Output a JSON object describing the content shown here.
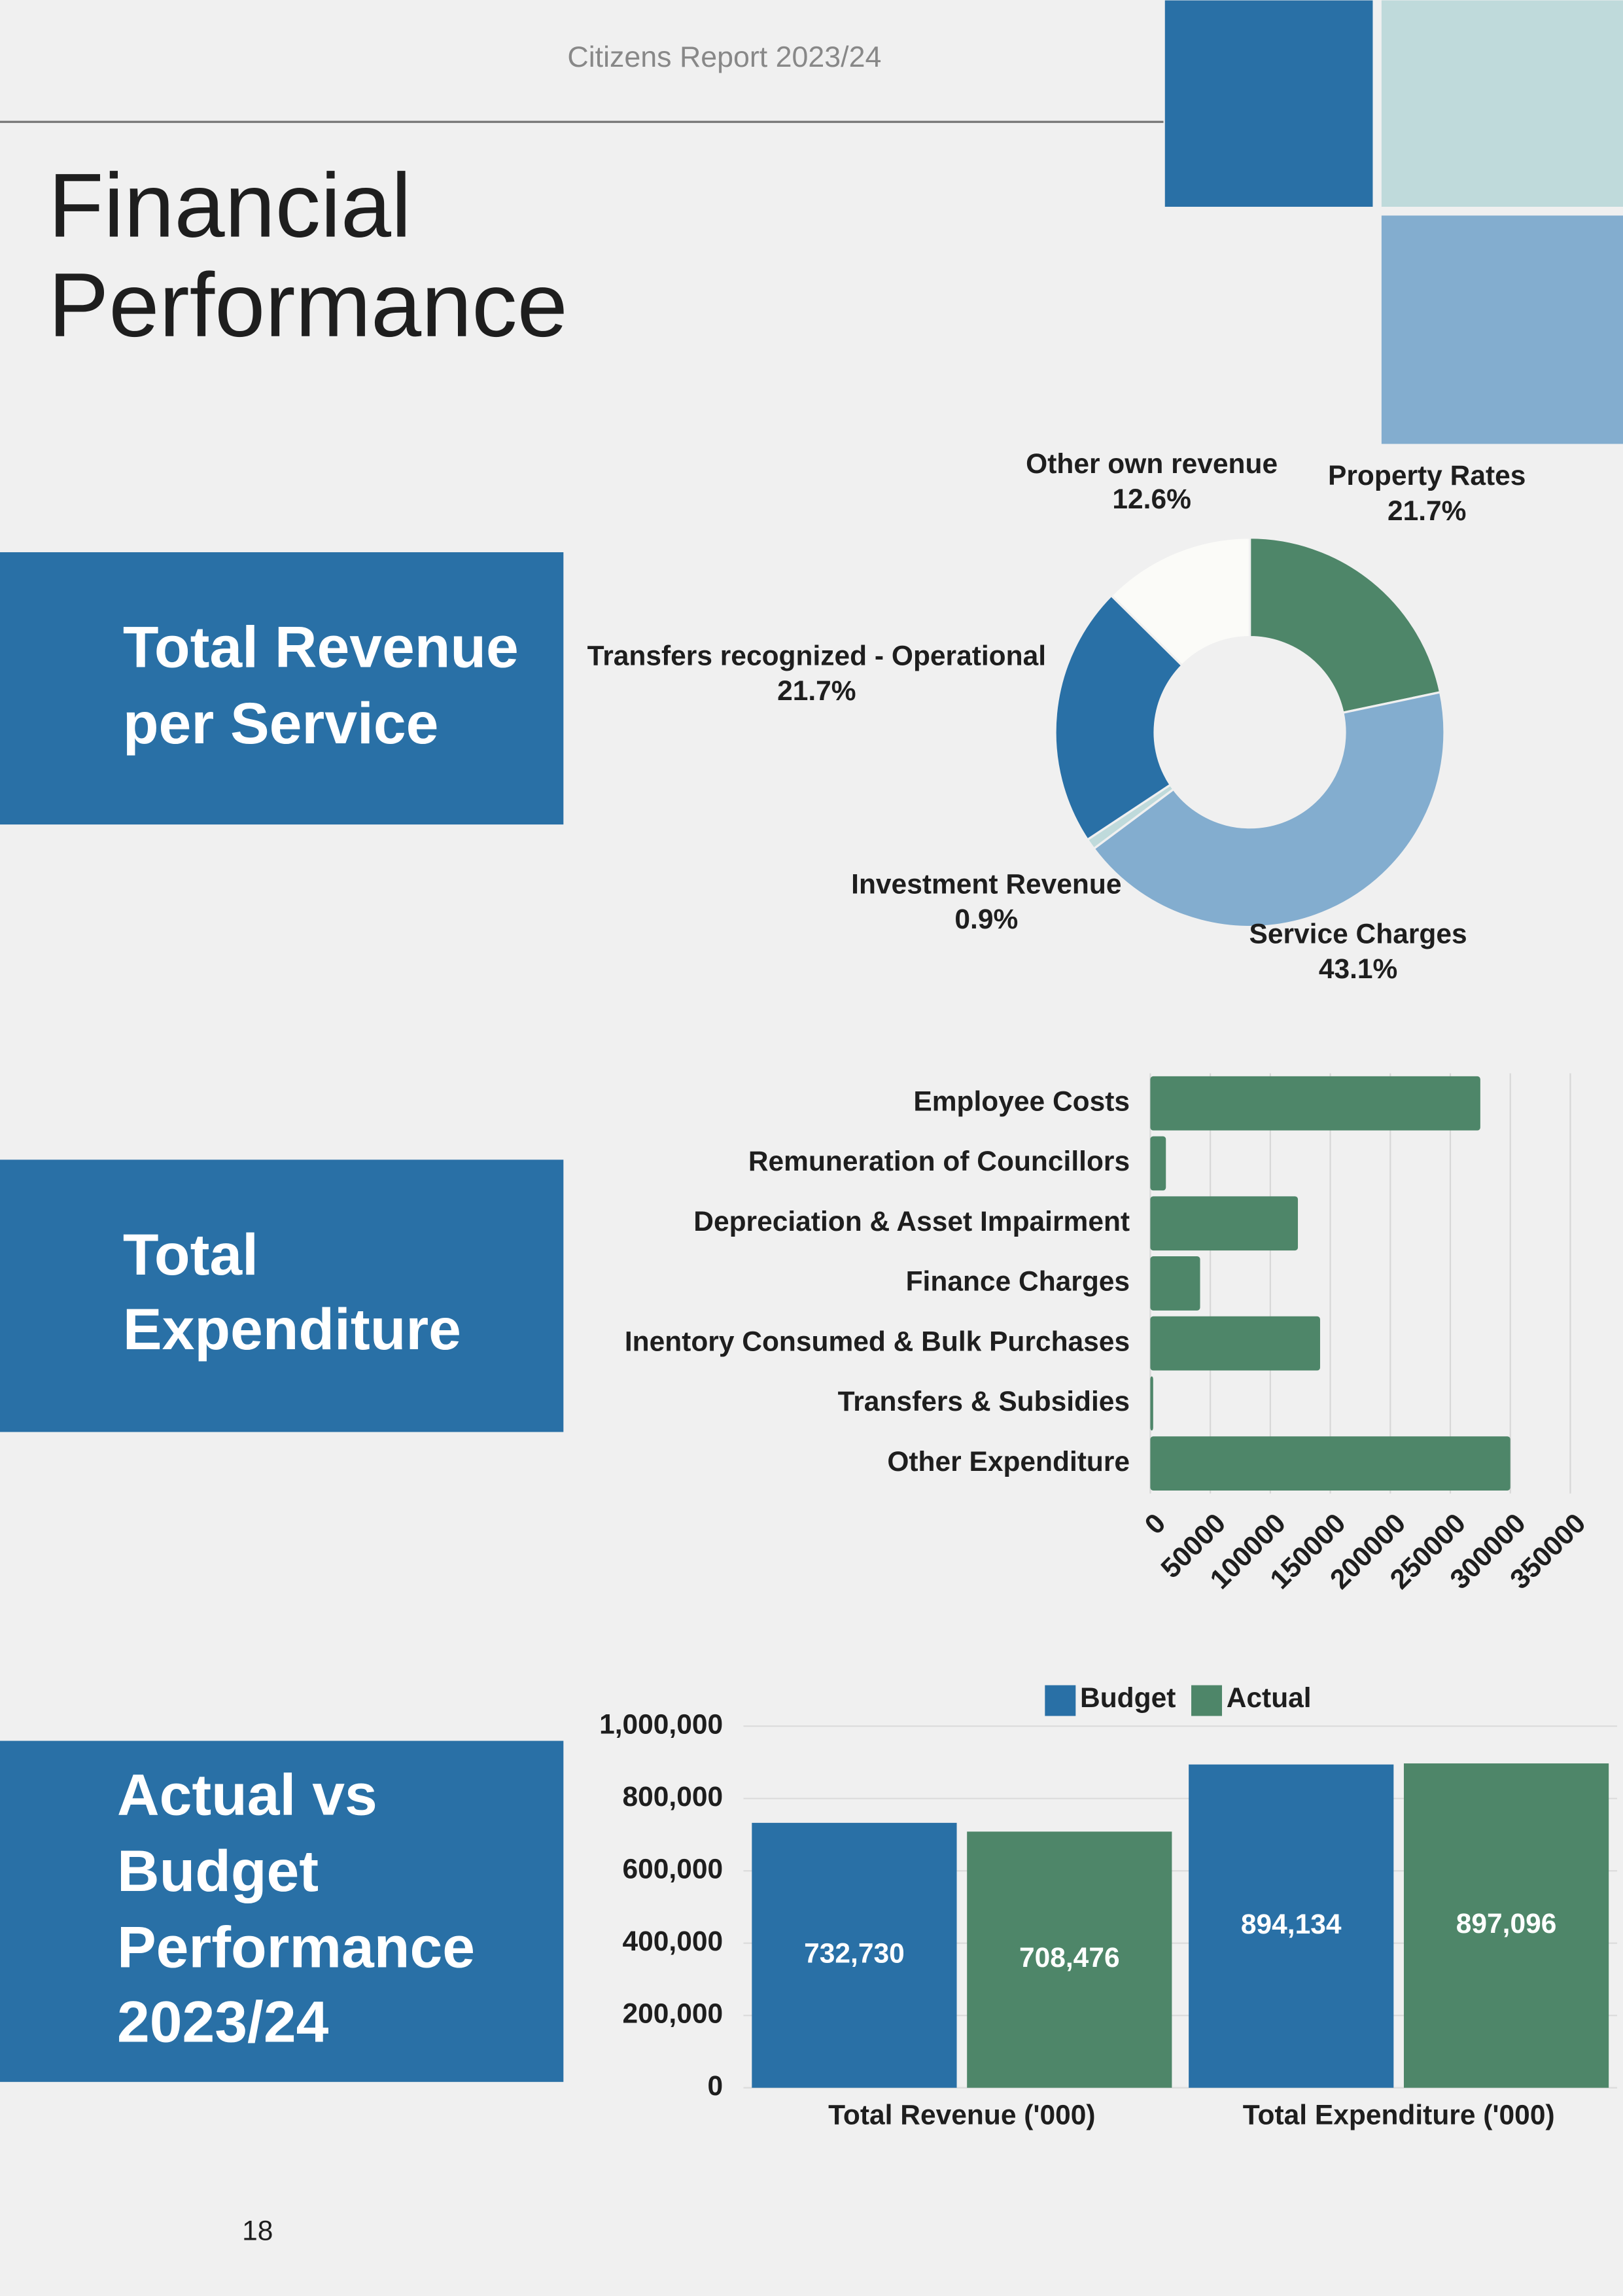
{
  "header": "Citizens Report 2023/24",
  "title": [
    "Financial",
    "Performance"
  ],
  "sections": [
    {
      "lines": [
        "Total Revenue",
        "per Service"
      ]
    },
    {
      "lines": [
        "Total",
        "Expenditure"
      ]
    },
    {
      "lines": [
        "Actual vs",
        "Budget",
        "Performance",
        "2023/24"
      ]
    }
  ],
  "page_number": "18",
  "chart_data": [
    {
      "type": "pie",
      "categories": [
        "Property Rates",
        "Service Charges",
        "Investment Revenue",
        "Transfers recognized - Operational",
        "Other own revenue"
      ],
      "values": [
        21.7,
        43.1,
        0.9,
        21.7,
        12.6
      ],
      "value_labels": [
        "21.7%",
        "43.1%",
        "0.9%",
        "21.7%",
        "12.6%"
      ],
      "colors": [
        "#4e8669",
        "#83adcf",
        "#bfdadb",
        "#2970a6",
        "#fbfbf8"
      ]
    },
    {
      "type": "hbar",
      "categories": [
        "Employee Costs",
        "Remuneration of Councillors",
        "Depreciation & Asset Impairment",
        "Finance Charges",
        "Inentory Consumed & Bulk Purchases",
        "Transfers & Subsidies",
        "Other Expenditure"
      ],
      "values": [
        275000,
        13000,
        123000,
        41500,
        141500,
        2400,
        300000
      ],
      "color": "#4e8669",
      "xlim": [
        0,
        350000
      ],
      "xticks": [
        0,
        50000,
        100000,
        150000,
        200000,
        250000,
        300000,
        350000
      ],
      "grid": true
    },
    {
      "type": "grouped_bar",
      "categories": [
        "Total Revenue ('000)",
        "Total Expenditure ('000)"
      ],
      "series": [
        {
          "name": "Budget",
          "color": "#2970a6",
          "values": [
            732730,
            894134
          ],
          "value_labels": [
            "732,730",
            "894,134"
          ]
        },
        {
          "name": "Actual",
          "color": "#4e8669",
          "values": [
            708476,
            897096
          ],
          "value_labels": [
            "708,476",
            "897,096"
          ]
        }
      ],
      "ylim": [
        0,
        1000000
      ],
      "yticks": [
        0,
        {
          "value": 200000,
          "label": "200,000"
        },
        {
          "value": 400000,
          "label": "400,000"
        },
        {
          "value": 600000,
          "label": "600,000"
        },
        {
          "value": 800000,
          "label": "800,000"
        },
        {
          "value": 1000000,
          "label": "1,000,000"
        }
      ],
      "grid": true,
      "legend": "top"
    }
  ]
}
